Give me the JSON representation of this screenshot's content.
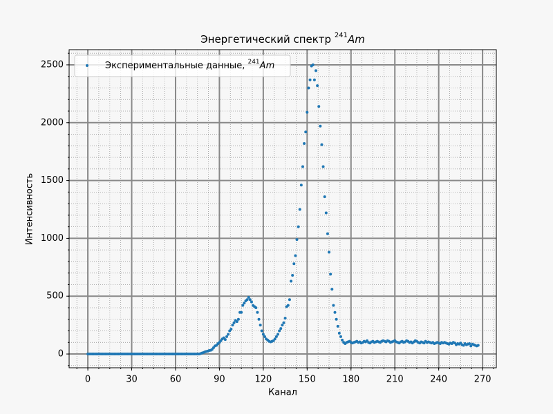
{
  "chart_data": {
    "type": "scatter",
    "title": {
      "text": "Энергетический спектр",
      "sup": "241",
      "italic": "Am"
    },
    "xlabel": "Канал",
    "ylabel": "Интенсивность",
    "xlim": [
      -12.8,
      279.4
    ],
    "ylim": [
      -119,
      2631
    ],
    "xticks": [
      0,
      30,
      60,
      90,
      120,
      150,
      180,
      210,
      240,
      270
    ],
    "yticks": [
      0,
      500,
      1000,
      1500,
      2000,
      2500
    ],
    "xminorticks": [
      -7.5,
      0,
      7.5,
      15,
      22.5,
      30,
      37.5,
      45,
      52.5,
      60,
      67.5,
      75,
      82.5,
      90,
      97.5,
      105,
      112.5,
      120,
      127.5,
      135,
      142.5,
      150,
      157.5,
      165,
      172.5,
      180,
      187.5,
      195,
      202.5,
      210,
      217.5,
      225,
      232.5,
      240,
      247.5,
      255,
      262.5,
      270,
      277.5
    ],
    "yminorticks": [
      -100,
      0,
      100,
      200,
      300,
      400,
      500,
      600,
      700,
      800,
      900,
      1000,
      1100,
      1200,
      1300,
      1400,
      1500,
      1600,
      1700,
      1800,
      1900,
      2000,
      2100,
      2200,
      2300,
      2400,
      2500,
      2600
    ],
    "grid": true,
    "minor_grid": true,
    "legend": "upper left",
    "x": [
      0,
      1,
      2,
      3,
      4,
      5,
      6,
      7,
      8,
      9,
      10,
      11,
      12,
      13,
      14,
      15,
      16,
      17,
      18,
      19,
      20,
      21,
      22,
      23,
      24,
      25,
      26,
      27,
      28,
      29,
      30,
      31,
      32,
      33,
      34,
      35,
      36,
      37,
      38,
      39,
      40,
      41,
      42,
      43,
      44,
      45,
      46,
      47,
      48,
      49,
      50,
      51,
      52,
      53,
      54,
      55,
      56,
      57,
      58,
      59,
      60,
      61,
      62,
      63,
      64,
      65,
      66,
      67,
      68,
      69,
      70,
      71,
      72,
      73,
      74,
      75,
      76,
      77,
      78,
      79,
      80,
      81,
      82,
      83,
      84,
      85,
      86,
      87,
      88,
      89,
      90,
      91,
      92,
      93,
      94,
      95,
      96,
      97,
      98,
      99,
      100,
      101,
      102,
      103,
      104,
      105,
      106,
      107,
      108,
      109,
      110,
      111,
      112,
      113,
      114,
      115,
      116,
      117,
      118,
      119,
      120,
      121,
      122,
      123,
      124,
      125,
      126,
      127,
      128,
      129,
      130,
      131,
      132,
      133,
      134,
      135,
      136,
      137,
      138,
      139,
      140,
      141,
      142,
      143,
      144,
      145,
      146,
      147,
      148,
      149,
      150,
      151,
      152,
      153,
      154,
      155,
      156,
      157,
      158,
      159,
      160,
      161,
      162,
      163,
      164,
      165,
      166,
      167,
      168,
      169,
      170,
      171,
      172,
      173,
      174,
      175,
      176,
      177,
      178,
      179,
      180,
      181,
      182,
      183,
      184,
      185,
      186,
      187,
      188,
      189,
      190,
      191,
      192,
      193,
      194,
      195,
      196,
      197,
      198,
      199,
      200,
      201,
      202,
      203,
      204,
      205,
      206,
      207,
      208,
      209,
      210,
      211,
      212,
      213,
      214,
      215,
      216,
      217,
      218,
      219,
      220,
      221,
      222,
      223,
      224,
      225,
      226,
      227,
      228,
      229,
      230,
      231,
      232,
      233,
      234,
      235,
      236,
      237,
      238,
      239,
      240,
      241,
      242,
      243,
      244,
      245,
      246,
      247,
      248,
      249,
      250,
      251,
      252,
      253,
      254,
      255,
      256,
      257,
      258,
      259,
      260,
      261,
      262,
      263,
      264,
      265,
      266,
      267
    ],
    "series": [
      {
        "name": "Экспериментальные данные,",
        "name_sup": "241",
        "name_italic": "Am",
        "color": "#1f77b4",
        "values": [
          0,
          0,
          0,
          0,
          0,
          0,
          0,
          0,
          0,
          0,
          0,
          0,
          0,
          0,
          0,
          0,
          0,
          0,
          0,
          0,
          0,
          0,
          0,
          0,
          0,
          0,
          0,
          0,
          0,
          0,
          0,
          0,
          0,
          0,
          0,
          0,
          0,
          0,
          0,
          0,
          0,
          0,
          0,
          0,
          0,
          0,
          0,
          0,
          0,
          0,
          0,
          0,
          0,
          0,
          0,
          0,
          0,
          0,
          0,
          0,
          0,
          0,
          0,
          0,
          0,
          0,
          0,
          0,
          0,
          0,
          0,
          0,
          0,
          0,
          0,
          0,
          0,
          3,
          8,
          12,
          18,
          22,
          25,
          30,
          32,
          40,
          55,
          70,
          75,
          90,
          100,
          115,
          130,
          140,
          125,
          150,
          170,
          200,
          215,
          250,
          270,
          290,
          280,
          300,
          360,
          360,
          420,
          440,
          460,
          470,
          490,
          470,
          450,
          420,
          410,
          400,
          360,
          300,
          250,
          200,
          170,
          150,
          130,
          120,
          110,
          105,
          110,
          115,
          130,
          150,
          170,
          200,
          220,
          250,
          270,
          310,
          410,
          420,
          470,
          630,
          680,
          780,
          850,
          990,
          1100,
          1250,
          1460,
          1620,
          1820,
          1920,
          2090,
          2300,
          2370,
          2490,
          2500,
          2370,
          2450,
          2320,
          2140,
          1970,
          1810,
          1620,
          1360,
          1220,
          1040,
          880,
          690,
          560,
          420,
          360,
          300,
          240,
          180,
          150,
          120,
          100,
          90,
          100,
          105,
          110,
          100,
          95,
          100,
          105,
          110,
          100,
          105,
          95,
          100,
          110,
          105,
          115,
          100,
          95,
          105,
          110,
          100,
          105,
          110,
          105,
          100,
          110,
          115,
          110,
          105,
          115,
          110,
          100,
          105,
          110,
          115,
          105,
          100,
          95,
          105,
          110,
          100,
          105,
          115,
          110,
          100,
          105,
          95,
          105,
          115,
          110,
          100,
          95,
          105,
          100,
          95,
          110,
          100,
          105,
          100,
          95,
          100,
          90,
          95,
          100,
          95,
          90,
          100,
          95,
          100,
          95,
          90,
          85,
          95,
          90,
          100,
          95,
          80,
          90,
          85,
          95,
          80,
          75,
          90,
          80,
          85,
          90,
          70,
          85,
          80,
          75,
          70,
          75
        ]
      }
    ]
  }
}
